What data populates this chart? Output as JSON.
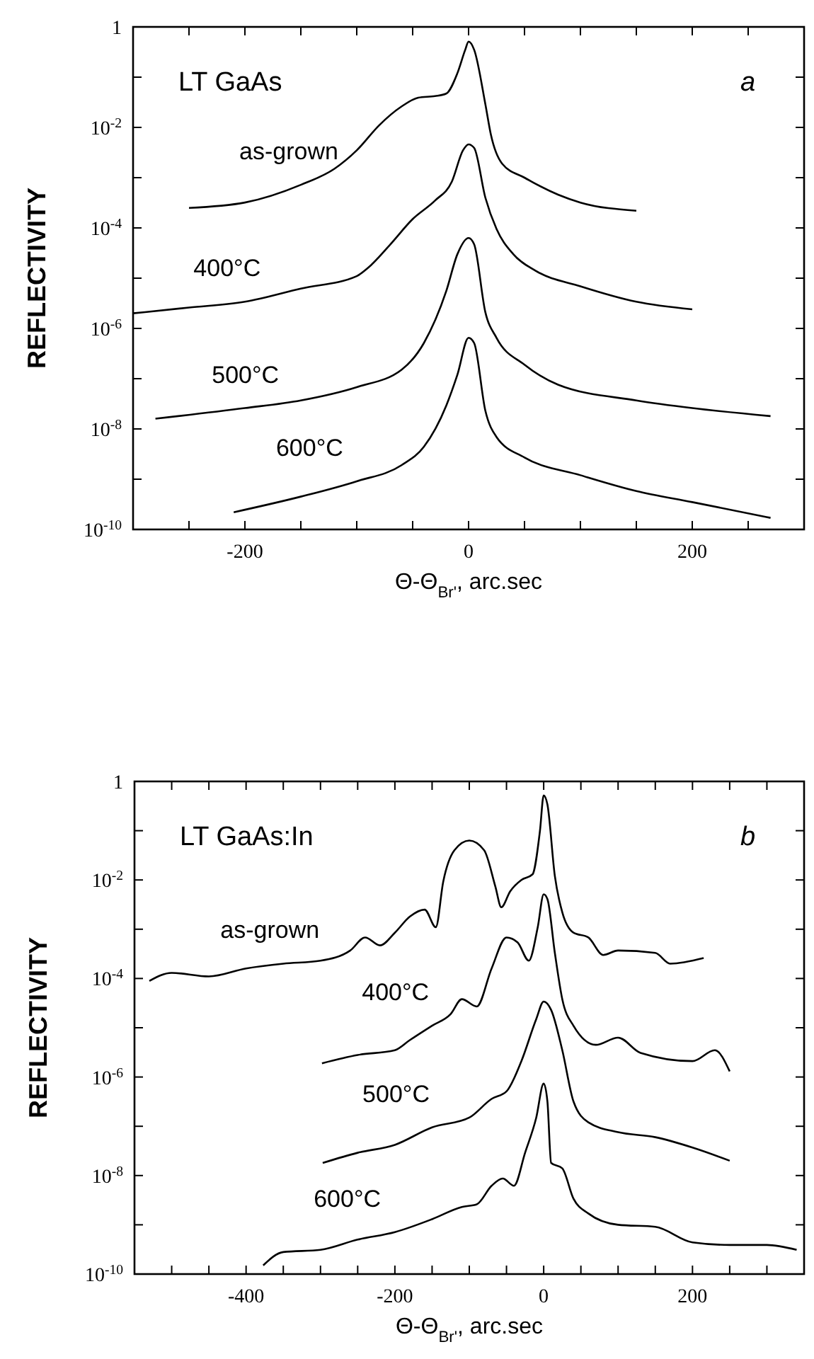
{
  "chart_data": [
    {
      "type": "line",
      "annotations": [
        "LT GaAs",
        "a"
      ],
      "xlabel": "Θ-Θ$_{Br'}$, arc.sec",
      "ylabel": "REFLECTIVITY",
      "log": "y",
      "marker": "none",
      "line_style": "solid",
      "grid": false,
      "xlim": [
        -300,
        300
      ],
      "xticks": [
        {
          "value": -250,
          "label": null
        },
        {
          "value": -200,
          "label": "-200"
        },
        {
          "value": -150,
          "label": null
        },
        {
          "value": -100,
          "label": null
        },
        {
          "value": -50,
          "label": null
        },
        {
          "value": 0,
          "label": "0"
        },
        {
          "value": 50,
          "label": null
        },
        {
          "value": 100,
          "label": null
        },
        {
          "value": 150,
          "label": null
        },
        {
          "value": 200,
          "label": "200"
        },
        {
          "value": 250,
          "label": null
        }
      ],
      "ylim": [
        1e-10,
        1
      ],
      "yticks": [
        1,
        {
          "value": 0.1,
          "label": null
        },
        {
          "value": 0.01,
          "label": "10$^{-2}$"
        },
        {
          "value": 0.001,
          "label": null
        },
        {
          "value": 0.0001,
          "label": "10$^{-4}$"
        },
        {
          "value": 1e-05,
          "label": null
        },
        {
          "value": 1e-06,
          "label": "10$^{-6}$"
        },
        {
          "value": 1e-07,
          "label": null
        },
        {
          "value": 1e-08,
          "label": "10$^{-8}$"
        },
        {
          "value": 1e-09,
          "label": null
        },
        {
          "value": 1e-10,
          "label": "10$^{-10}$"
        }
      ],
      "series": [
        {
          "name": "as-grown",
          "color": "#000000",
          "x": [
            -250,
            -200,
            -150,
            -120,
            -100,
            -80,
            -60,
            -45,
            -30,
            -20,
            -10,
            -3,
            0,
            5,
            15,
            20,
            30,
            50,
            80,
            100,
            150
          ],
          "values": [
            0.00025,
            0.00032,
            0.00072,
            0.0015,
            0.0035,
            0.011,
            0.026,
            0.039,
            0.042,
            0.047,
            0.12,
            0.35,
            0.51,
            0.35,
            0.029,
            0.0071,
            0.0019,
            0.001,
            0.00046,
            0.00032,
            0.00022
          ]
        },
        {
          "name": "400°C",
          "color": "#000000",
          "x": [
            -300,
            -250,
            -200,
            -150,
            -100,
            -90,
            -70,
            -50,
            -30,
            -15,
            -5,
            0,
            5,
            15,
            25,
            40,
            60,
            100,
            150,
            200
          ],
          "values": [
            2e-06,
            2.6e-06,
            3.4e-06,
            6.2e-06,
            1.1e-05,
            1.6e-05,
            4.7e-05,
            0.00015,
            0.00035,
            0.00083,
            0.0035,
            0.0046,
            0.0039,
            0.0004,
            9.5e-05,
            3e-05,
            1.4e-05,
            6.9e-06,
            3.4e-06,
            2.4e-06
          ]
        },
        {
          "name": "500°C",
          "color": "#000000",
          "x": [
            -280,
            -200,
            -150,
            -100,
            -60,
            -40,
            -20,
            -10,
            0,
            5,
            15,
            25,
            50,
            80,
            150,
            200,
            270
          ],
          "values": [
            1.6e-08,
            2.6e-08,
            3.7e-08,
            6.8e-08,
            1.5e-07,
            5.1e-07,
            5.5e-06,
            3e-05,
            6.3e-05,
            4.7e-05,
            2.1e-06,
            6.5e-07,
            1.9e-07,
            7.6e-08,
            3.7e-08,
            2.6e-08,
            1.8e-08
          ]
        },
        {
          "name": "600°C",
          "color": "#000000",
          "x": [
            -210,
            -150,
            -100,
            -60,
            -40,
            -20,
            -10,
            0,
            5,
            15,
            25,
            50,
            100,
            150,
            200,
            270
          ],
          "values": [
            2.2e-10,
            4.5e-10,
            9.1e-10,
            1.9e-09,
            4.4e-09,
            2.9e-08,
            1.2e-07,
            6.5e-07,
            5.1e-07,
            2.3e-08,
            6.9e-09,
            2.7e-09,
            1.2e-09,
            5.8e-10,
            3.5e-10,
            1.7e-10
          ]
        }
      ]
    },
    {
      "type": "line",
      "annotations": [
        "LT GaAs:In",
        "b"
      ],
      "xlabel": "Θ-Θ$_{Br'}$, arc.sec",
      "ylabel": "REFLECTIVITY",
      "log": "y",
      "marker": "none",
      "line_style": "solid",
      "grid": false,
      "xlim": [
        -550,
        350
      ],
      "xticks": [
        {
          "value": -500,
          "label": null
        },
        {
          "value": -450,
          "label": null
        },
        {
          "value": -400,
          "label": "-400"
        },
        {
          "value": -350,
          "label": null
        },
        {
          "value": -300,
          "label": null
        },
        {
          "value": -250,
          "label": null
        },
        {
          "value": -200,
          "label": "-200"
        },
        {
          "value": -150,
          "label": null
        },
        {
          "value": -100,
          "label": null
        },
        {
          "value": -50,
          "label": null
        },
        {
          "value": 0,
          "label": "0"
        },
        {
          "value": 50,
          "label": null
        },
        {
          "value": 100,
          "label": null
        },
        {
          "value": 150,
          "label": null
        },
        {
          "value": 200,
          "label": "200"
        },
        {
          "value": 250,
          "label": null
        },
        {
          "value": 300,
          "label": null
        }
      ],
      "ylim": [
        1e-10,
        1
      ],
      "yticks": [
        1,
        {
          "value": 0.1,
          "label": null
        },
        {
          "value": 0.01,
          "label": "10$^{-2}$"
        },
        {
          "value": 0.001,
          "label": null
        },
        {
          "value": 0.0001,
          "label": "10$^{-4}$"
        },
        {
          "value": 1e-05,
          "label": null
        },
        {
          "value": 1e-06,
          "label": "10$^{-6}$"
        },
        {
          "value": 1e-07,
          "label": null
        },
        {
          "value": 1e-08,
          "label": "10$^{-8}$"
        },
        {
          "value": 1e-09,
          "label": null
        },
        {
          "value": 1e-10,
          "label": "10$^{-10}$"
        }
      ],
      "series": [
        {
          "name": "as-grown",
          "color": "#000000",
          "x": [
            -530,
            -500,
            -450,
            -400,
            -350,
            -300,
            -260,
            -240,
            -220,
            -200,
            -180,
            -160,
            -145,
            -135,
            -120,
            -100,
            -80,
            -65,
            -57,
            -45,
            -30,
            -15,
            -5,
            0,
            5,
            15,
            25,
            40,
            60,
            80,
            100,
            150,
            170,
            215
          ],
          "values": [
            8.9e-05,
            0.00013,
            0.00011,
            0.00016,
            0.0002,
            0.00023,
            0.00037,
            0.00068,
            0.00047,
            0.00085,
            0.0018,
            0.0025,
            0.0011,
            0.0093,
            0.04,
            0.063,
            0.04,
            0.0074,
            0.0028,
            0.0059,
            0.01,
            0.013,
            0.1,
            0.52,
            0.34,
            0.012,
            0.0022,
            0.00085,
            0.00068,
            0.0003,
            0.00037,
            0.00033,
            0.0002,
            0.00026
          ]
        },
        {
          "name": "400°C",
          "color": "#000000",
          "x": [
            -298,
            -250,
            -200,
            -180,
            -150,
            -125,
            -110,
            -90,
            -70,
            -50,
            -35,
            -20,
            -8,
            0,
            5,
            15,
            25,
            40,
            70,
            100,
            130,
            200,
            230,
            250
          ],
          "values": [
            1.9e-06,
            2.8e-06,
            3.5e-06,
            5.6e-06,
            1.1e-05,
            1.9e-05,
            3.8e-05,
            2.7e-05,
            0.00016,
            0.00068,
            0.00054,
            0.00023,
            0.0011,
            0.0051,
            0.0041,
            0.00033,
            3.8e-05,
            1.1e-05,
            4.5e-06,
            6.3e-06,
            3.1e-06,
            2.1e-06,
            3.5e-06,
            1.3e-06
          ]
        },
        {
          "name": "500°C",
          "color": "#000000",
          "x": [
            -297,
            -250,
            -200,
            -150,
            -100,
            -70,
            -50,
            -30,
            -10,
            0,
            10,
            25,
            40,
            60,
            100,
            150,
            200,
            250
          ],
          "values": [
            1.8e-08,
            2.9e-08,
            4.2e-08,
            9.5e-08,
            1.5e-07,
            3.6e-07,
            5.1e-07,
            2.1e-06,
            1.5e-05,
            3.4e-05,
            2.3e-05,
            3.5e-06,
            3.2e-07,
            1.2e-07,
            7.6e-08,
            6e-08,
            3.7e-08,
            2e-08
          ]
        },
        {
          "name": "600°C",
          "color": "#000000",
          "x": [
            -377,
            -350,
            -300,
            -250,
            -200,
            -150,
            -110,
            -90,
            -70,
            -55,
            -40,
            -25,
            -10,
            0,
            5,
            10,
            25,
            40,
            60,
            100,
            150,
            200,
            250,
            300,
            340
          ],
          "values": [
            1.5e-10,
            2.8e-10,
            3.1e-10,
            5e-10,
            7.1e-10,
            1.3e-09,
            2.3e-09,
            2.6e-09,
            6.2e-09,
            8.7e-09,
            6.2e-09,
            2.9e-08,
            1.5e-07,
            7.4e-07,
            3.2e-07,
            1.8e-08,
            1.4e-08,
            3.4e-09,
            1.7e-09,
            1e-09,
            9.1e-10,
            4.4e-10,
            3.9e-10,
            3.9e-10,
            3.1e-10
          ]
        }
      ]
    }
  ]
}
